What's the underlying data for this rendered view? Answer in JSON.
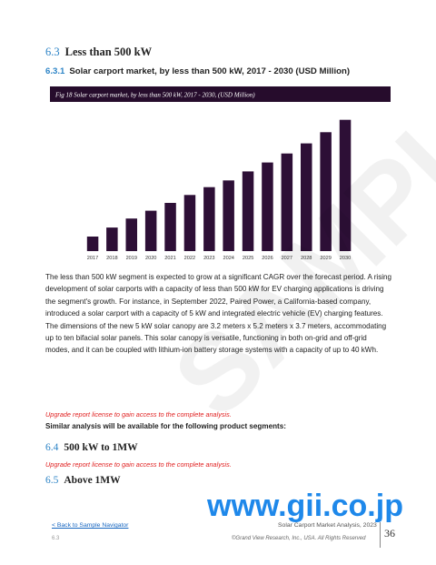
{
  "section": {
    "number": "6.3",
    "title": "Less than 500 kW"
  },
  "subsection": {
    "number": "6.3.1",
    "title": "Solar carport market, by less than 500 kW, 2017 - 2030 (USD Million)"
  },
  "chart_data": {
    "type": "bar",
    "title": "Fig 18  Solar carport market, by less than 500 kW, 2017 - 2030, (USD Million)",
    "categories": [
      "2017",
      "2018",
      "2019",
      "2020",
      "2021",
      "2022",
      "2023",
      "2024",
      "2025",
      "2026",
      "2027",
      "2028",
      "2029",
      "2030"
    ],
    "values": [
      13,
      21,
      29,
      36,
      43,
      50,
      57,
      63,
      71,
      79,
      87,
      96,
      106,
      117
    ],
    "xlabel": "",
    "ylabel": "",
    "ylim": [
      0,
      120
    ],
    "grid": false,
    "legend": "none",
    "colors": {
      "bar": "#2d0f36",
      "header": "#260c2c",
      "title_text": "#ffffff"
    }
  },
  "body": {
    "paragraph": "The less than 500 kW segment is expected to grow at a significant CAGR over the forecast period. A rising development of solar carports with a capacity of less than 500 kW for EV charging applications is driving the segment's growth. For instance, in September 2022, Paired Power, a California-based company, introduced a solar carport with a capacity of 5 kW and integrated electric vehicle (EV) charging features. The dimensions of the new 5 kW solar canopy are 3.2 meters x 5.2 meters x 3.7 meters, accommodating up to ten bifacial solar panels. This solar canopy is versatile, functioning in both on-grid and off-grid modes, and it can be coupled with lithium-ion battery storage systems with a capacity of up to 40 kWh."
  },
  "upgrade_text": "Upgrade report license to gain access to the complete analysis.",
  "similar_text": "Similar analysis will be available for the following product segments:",
  "sections_more": [
    {
      "number": "6.4",
      "title": "500 kW to 1MW"
    },
    {
      "number": "6.5",
      "title": "Above 1MW"
    }
  ],
  "watermark": "SAMPLE",
  "gii_url": "www.gii.co.jp",
  "footer": {
    "back_link": "< Back to Sample Navigator",
    "report_title": "Solar Carport Market Analysis, 2023",
    "copyright": "©Grand View Research, Inc., USA. All Rights Reserved",
    "section": "6.3",
    "page_number": "36"
  }
}
